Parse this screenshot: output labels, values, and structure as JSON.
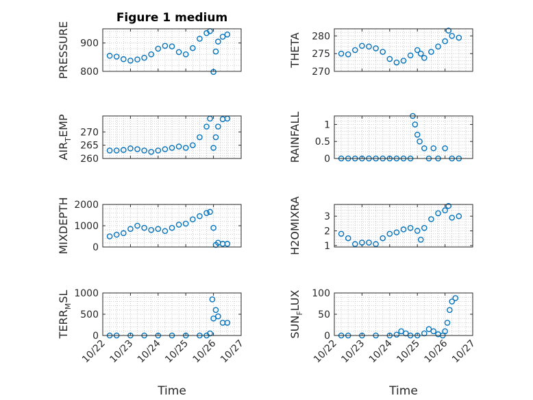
{
  "figure": {
    "title": "Figure 1 medium"
  },
  "colors": {
    "marker": "#0072BD",
    "axes": "#262626",
    "grid": "#bdbdbd"
  },
  "chart_data": [
    {
      "type": "scatter",
      "title": "Figure 1 medium",
      "ylabel": "PRESSURE",
      "ylabel_sub": "",
      "xlim": [
        "2023-10-22",
        "2023-10-27"
      ],
      "ylim": [
        800,
        950
      ],
      "yticks": [
        800,
        900
      ],
      "ytick_labels": [
        "800",
        "900"
      ],
      "xticks_shown": false,
      "grid": true,
      "x": [
        "2023-10-22T06:00",
        "2023-10-22T12:00",
        "2023-10-22T18:00",
        "2023-10-23T00:00",
        "2023-10-23T06:00",
        "2023-10-23T12:00",
        "2023-10-23T18:00",
        "2023-10-24T00:00",
        "2023-10-24T06:00",
        "2023-10-24T12:00",
        "2023-10-24T18:00",
        "2023-10-25T00:00",
        "2023-10-25T06:00",
        "2023-10-25T12:00",
        "2023-10-25T18:00",
        "2023-10-25T21:00",
        "2023-10-26T00:00",
        "2023-10-26T02:00",
        "2023-10-26T04:00",
        "2023-10-26T08:00",
        "2023-10-26T12:00"
      ],
      "y": [
        855,
        852,
        843,
        838,
        842,
        848,
        860,
        880,
        890,
        888,
        868,
        860,
        882,
        915,
        935,
        942,
        798,
        870,
        905,
        922,
        930
      ]
    },
    {
      "type": "scatter",
      "title": "",
      "ylabel": "THETA",
      "ylabel_sub": "",
      "xlim": [
        "2023-10-22",
        "2023-10-27"
      ],
      "ylim": [
        270,
        282
      ],
      "yticks": [
        270,
        275,
        280
      ],
      "ytick_labels": [
        "270",
        "275",
        "280"
      ],
      "xticks_shown": false,
      "grid": true,
      "x": [
        "2023-10-22T06:00",
        "2023-10-22T12:00",
        "2023-10-22T18:00",
        "2023-10-23T00:00",
        "2023-10-23T06:00",
        "2023-10-23T12:00",
        "2023-10-23T18:00",
        "2023-10-24T00:00",
        "2023-10-24T06:00",
        "2023-10-24T12:00",
        "2023-10-24T18:00",
        "2023-10-25T00:00",
        "2023-10-25T03:00",
        "2023-10-25T06:00",
        "2023-10-25T12:00",
        "2023-10-25T18:00",
        "2023-10-26T00:00",
        "2023-10-26T03:00",
        "2023-10-26T06:00",
        "2023-10-26T12:00"
      ],
      "y": [
        275,
        274.8,
        276,
        277.2,
        277,
        276.5,
        275.5,
        273.5,
        272.5,
        273,
        274.5,
        276,
        275,
        273.8,
        275.5,
        277,
        278.5,
        281.5,
        280,
        279.5
      ]
    },
    {
      "type": "scatter",
      "title": "",
      "ylabel": "AIR",
      "ylabel_sub": "T",
      "ylabel_after": "EMP",
      "xlim": [
        "2023-10-22",
        "2023-10-27"
      ],
      "ylim": [
        260,
        276
      ],
      "yticks": [
        260,
        265,
        270
      ],
      "ytick_labels": [
        "260",
        "265",
        "270"
      ],
      "xticks_shown": false,
      "grid": true,
      "x": [
        "2023-10-22T06:00",
        "2023-10-22T12:00",
        "2023-10-22T18:00",
        "2023-10-23T00:00",
        "2023-10-23T06:00",
        "2023-10-23T12:00",
        "2023-10-23T18:00",
        "2023-10-24T00:00",
        "2023-10-24T06:00",
        "2023-10-24T12:00",
        "2023-10-24T18:00",
        "2023-10-25T00:00",
        "2023-10-25T06:00",
        "2023-10-25T12:00",
        "2023-10-25T18:00",
        "2023-10-25T21:00",
        "2023-10-26T00:00",
        "2023-10-26T02:00",
        "2023-10-26T04:00",
        "2023-10-26T08:00",
        "2023-10-26T12:00"
      ],
      "y": [
        263,
        263,
        263.2,
        263.8,
        263.5,
        263,
        262.5,
        263,
        263.5,
        264,
        264.5,
        264,
        265,
        268,
        272,
        275,
        264,
        268,
        272,
        274.8,
        275
      ]
    },
    {
      "type": "scatter",
      "title": "",
      "ylabel": "RAINFALL",
      "ylabel_sub": "",
      "xlim": [
        "2023-10-22",
        "2023-10-27"
      ],
      "ylim": [
        0,
        1.25
      ],
      "yticks": [
        0,
        0.5,
        1
      ],
      "ytick_labels": [
        "0",
        "0.5",
        "1"
      ],
      "xticks_shown": false,
      "grid": true,
      "x": [
        "2023-10-22T06:00",
        "2023-10-22T12:00",
        "2023-10-22T18:00",
        "2023-10-23T00:00",
        "2023-10-23T06:00",
        "2023-10-23T12:00",
        "2023-10-23T18:00",
        "2023-10-24T00:00",
        "2023-10-24T06:00",
        "2023-10-24T12:00",
        "2023-10-24T18:00",
        "2023-10-24T20:00",
        "2023-10-24T22:00",
        "2023-10-25T00:00",
        "2023-10-25T02:00",
        "2023-10-25T06:00",
        "2023-10-25T10:00",
        "2023-10-25T14:00",
        "2023-10-25T18:00",
        "2023-10-26T00:00",
        "2023-10-26T06:00",
        "2023-10-26T12:00"
      ],
      "y": [
        0,
        0,
        0,
        0,
        0,
        0,
        0,
        0,
        0,
        0,
        0,
        1.25,
        1.0,
        0.7,
        0.5,
        0.3,
        0,
        0.3,
        0,
        0.3,
        0,
        0
      ]
    },
    {
      "type": "scatter",
      "title": "",
      "ylabel": "MIXDEPTH",
      "ylabel_sub": "",
      "xlim": [
        "2023-10-22",
        "2023-10-27"
      ],
      "ylim": [
        0,
        2000
      ],
      "yticks": [
        0,
        1000,
        2000
      ],
      "ytick_labels": [
        "0",
        "1000",
        "2000"
      ],
      "xticks_shown": false,
      "grid": true,
      "x": [
        "2023-10-22T06:00",
        "2023-10-22T12:00",
        "2023-10-22T18:00",
        "2023-10-23T00:00",
        "2023-10-23T06:00",
        "2023-10-23T12:00",
        "2023-10-23T18:00",
        "2023-10-24T00:00",
        "2023-10-24T06:00",
        "2023-10-24T12:00",
        "2023-10-24T18:00",
        "2023-10-25T00:00",
        "2023-10-25T06:00",
        "2023-10-25T12:00",
        "2023-10-25T18:00",
        "2023-10-25T21:00",
        "2023-10-26T00:00",
        "2023-10-26T02:00",
        "2023-10-26T04:00",
        "2023-10-26T08:00",
        "2023-10-26T12:00"
      ],
      "y": [
        500,
        580,
        650,
        850,
        1000,
        900,
        800,
        850,
        750,
        900,
        1050,
        1100,
        1300,
        1450,
        1600,
        1650,
        900,
        100,
        200,
        150,
        150
      ]
    },
    {
      "type": "scatter",
      "title": "",
      "ylabel": "H2OMIXRA",
      "ylabel_sub": "",
      "xlim": [
        "2023-10-22",
        "2023-10-27"
      ],
      "ylim": [
        0.9,
        3.8
      ],
      "yticks": [
        1,
        2,
        3
      ],
      "ytick_labels": [
        "1",
        "2",
        "3"
      ],
      "xticks_shown": false,
      "grid": true,
      "x": [
        "2023-10-22T06:00",
        "2023-10-22T12:00",
        "2023-10-22T18:00",
        "2023-10-23T00:00",
        "2023-10-23T06:00",
        "2023-10-23T12:00",
        "2023-10-23T18:00",
        "2023-10-24T00:00",
        "2023-10-24T06:00",
        "2023-10-24T12:00",
        "2023-10-24T18:00",
        "2023-10-25T00:00",
        "2023-10-25T03:00",
        "2023-10-25T06:00",
        "2023-10-25T12:00",
        "2023-10-25T18:00",
        "2023-10-26T00:00",
        "2023-10-26T03:00",
        "2023-10-26T06:00",
        "2023-10-26T12:00"
      ],
      "y": [
        1.8,
        1.5,
        1.1,
        1.2,
        1.2,
        1.1,
        1.5,
        1.8,
        1.9,
        2.1,
        2.2,
        2.0,
        1.4,
        2.2,
        2.8,
        3.2,
        3.4,
        3.7,
        2.9,
        3.0
      ]
    },
    {
      "type": "scatter",
      "title": "",
      "ylabel": "TERR",
      "ylabel_sub": "M",
      "ylabel_after": "SL",
      "xlim": [
        "2023-10-22",
        "2023-10-27"
      ],
      "ylim": [
        0,
        1000
      ],
      "yticks": [
        0,
        500,
        1000
      ],
      "ytick_labels": [
        "0",
        "500",
        "1000"
      ],
      "xticks": [
        "2023-10-22",
        "2023-10-23",
        "2023-10-24",
        "2023-10-25",
        "2023-10-26",
        "2023-10-27"
      ],
      "xtick_labels": [
        "10/22",
        "10/23",
        "10/24",
        "10/25",
        "10/26",
        "10/27"
      ],
      "xlabel": "Time",
      "grid": true,
      "x": [
        "2023-10-22T06:00",
        "2023-10-22T12:00",
        "2023-10-23T00:00",
        "2023-10-23T12:00",
        "2023-10-24T00:00",
        "2023-10-24T12:00",
        "2023-10-25T00:00",
        "2023-10-25T12:00",
        "2023-10-25T18:00",
        "2023-10-25T21:00",
        "2023-10-25T23:00",
        "2023-10-26T00:00",
        "2023-10-26T02:00",
        "2023-10-26T04:00",
        "2023-10-26T08:00",
        "2023-10-26T12:00"
      ],
      "y": [
        0,
        0,
        0,
        0,
        0,
        0,
        0,
        0,
        0,
        50,
        850,
        400,
        600,
        450,
        300,
        300
      ]
    },
    {
      "type": "scatter",
      "title": "",
      "ylabel": "SUN",
      "ylabel_sub": "F",
      "ylabel_after": "LUX",
      "xlim": [
        "2023-10-22",
        "2023-10-27"
      ],
      "ylim": [
        0,
        100
      ],
      "yticks": [
        0,
        50,
        100
      ],
      "ytick_labels": [
        "0",
        "50",
        "100"
      ],
      "xticks": [
        "2023-10-22",
        "2023-10-23",
        "2023-10-24",
        "2023-10-25",
        "2023-10-26",
        "2023-10-27"
      ],
      "xtick_labels": [
        "10/22",
        "10/23",
        "10/24",
        "10/25",
        "10/26",
        "10/27"
      ],
      "xlabel": "Time",
      "grid": true,
      "x": [
        "2023-10-22T06:00",
        "2023-10-22T12:00",
        "2023-10-23T00:00",
        "2023-10-23T12:00",
        "2023-10-24T00:00",
        "2023-10-24T06:00",
        "2023-10-24T10:00",
        "2023-10-24T14:00",
        "2023-10-24T18:00",
        "2023-10-25T00:00",
        "2023-10-25T06:00",
        "2023-10-25T10:00",
        "2023-10-25T14:00",
        "2023-10-25T18:00",
        "2023-10-25T22:00",
        "2023-10-26T00:00",
        "2023-10-26T02:00",
        "2023-10-26T04:00",
        "2023-10-26T06:00",
        "2023-10-26T09:00"
      ],
      "y": [
        0,
        0,
        0,
        0,
        0,
        2,
        10,
        5,
        0,
        0,
        5,
        15,
        10,
        3,
        0,
        10,
        30,
        60,
        80,
        88
      ]
    }
  ]
}
